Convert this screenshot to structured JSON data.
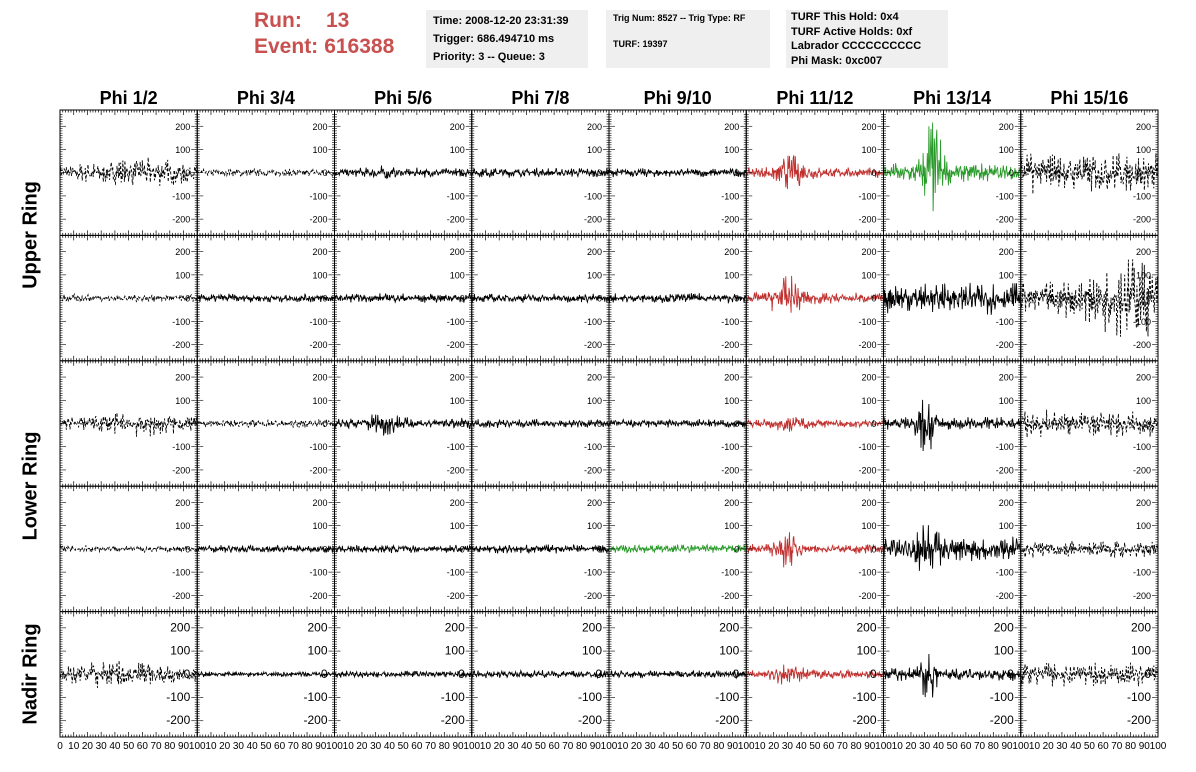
{
  "header": {
    "run_label": "Run:",
    "run_value": "13",
    "event_label": "Event:",
    "event_value": "616388",
    "time_line": "Time: 2008-12-20 23:31:39",
    "trigger_line": "Trigger: 686.494710 ms",
    "priority_line": "Priority: 3 -- Queue: 3",
    "trig_line": "Trig Num: 8527 -- Trig Type: RF",
    "turf_line": "TURF: 19397",
    "turf_hold_line": "TURF This Hold: 0x4",
    "turf_active_line": "TURF Active Holds: 0xf",
    "labrador_line": "Labrador CCCCCCCCCC",
    "phi_mask_line": "Phi Mask: 0xc007",
    "accent_color": "#c8504e",
    "box_color": "#efefef"
  },
  "chart_data": {
    "type": "line",
    "columns": [
      "Phi 1/2",
      "Phi 3/4",
      "Phi 5/6",
      "Phi 7/8",
      "Phi 9/10",
      "Phi 11/12",
      "Phi 13/14",
      "Phi 15/16"
    ],
    "rows": [
      "Upper Ring",
      "Upper Ring",
      "Lower Ring",
      "Lower Ring",
      "Nadir Ring"
    ],
    "ring_labels": [
      {
        "text": "Upper Ring",
        "rows": [
          0,
          1
        ]
      },
      {
        "text": "Lower Ring",
        "rows": [
          2,
          3
        ]
      },
      {
        "text": "Nadir Ring",
        "rows": [
          4
        ]
      }
    ],
    "xlim": [
      0,
      100
    ],
    "ylim": [
      -270,
      270
    ],
    "x_ticks": [
      0,
      10,
      20,
      30,
      40,
      50,
      60,
      70,
      80,
      90,
      100
    ],
    "x_tick_labels": [
      "0",
      "10",
      "20",
      "30",
      "40",
      "50",
      "60",
      "70",
      "80",
      "90",
      "100"
    ],
    "y_ticks": [
      -200,
      -100,
      0,
      100,
      200
    ],
    "y_tick_labels": [
      "-200",
      "-100",
      "0",
      "100",
      "200"
    ],
    "colors": {
      "normal": "#000000",
      "red": "#c0302e",
      "green": "#2a9a2a"
    },
    "waveforms": [
      [
        {
          "color": "black",
          "dashed": true,
          "amp": 35,
          "bursts": [
            [
              60,
              25,
              1.0
            ]
          ]
        },
        {
          "color": "black",
          "dashed": true,
          "amp": 18,
          "bursts": []
        },
        {
          "color": "black",
          "dashed": false,
          "amp": 22,
          "bursts": [
            [
              35,
              5,
              1.0
            ]
          ]
        },
        {
          "color": "black",
          "dashed": false,
          "amp": 22,
          "bursts": []
        },
        {
          "color": "black",
          "dashed": false,
          "amp": 20,
          "bursts": []
        },
        {
          "color": "red",
          "dashed": false,
          "amp": 25,
          "bursts": [
            [
              32,
              8,
              2.5
            ]
          ]
        },
        {
          "color": "green",
          "dashed": false,
          "amp": 45,
          "bursts": [
            [
              36,
              5,
              5.5
            ]
          ]
        },
        {
          "color": "black",
          "dashed": true,
          "amp": 95,
          "bursts": []
        }
      ],
      [
        {
          "color": "black",
          "dashed": true,
          "amp": 18,
          "bursts": []
        },
        {
          "color": "black",
          "dashed": false,
          "amp": 20,
          "bursts": []
        },
        {
          "color": "black",
          "dashed": false,
          "amp": 22,
          "bursts": []
        },
        {
          "color": "black",
          "dashed": false,
          "amp": 20,
          "bursts": []
        },
        {
          "color": "black",
          "dashed": false,
          "amp": 22,
          "bursts": []
        },
        {
          "color": "red",
          "dashed": false,
          "amp": 25,
          "bursts": [
            [
              30,
              8,
              3.5
            ]
          ]
        },
        {
          "color": "black",
          "dashed": false,
          "amp": 75,
          "bursts": []
        },
        {
          "color": "black",
          "dashed": true,
          "amp": 80,
          "bursts": [
            [
              80,
              20,
              1.4
            ]
          ]
        }
      ],
      [
        {
          "color": "black",
          "dashed": true,
          "amp": 28,
          "bursts": [
            [
              62,
              25,
              1.2
            ]
          ]
        },
        {
          "color": "black",
          "dashed": true,
          "amp": 18,
          "bursts": []
        },
        {
          "color": "black",
          "dashed": false,
          "amp": 25,
          "bursts": [
            [
              36,
              8,
              1.5
            ]
          ]
        },
        {
          "color": "black",
          "dashed": false,
          "amp": 20,
          "bursts": []
        },
        {
          "color": "black",
          "dashed": false,
          "amp": 20,
          "bursts": []
        },
        {
          "color": "red",
          "dashed": false,
          "amp": 18,
          "bursts": [
            [
              33,
              10,
              1.2
            ]
          ]
        },
        {
          "color": "black",
          "dashed": false,
          "amp": 30,
          "bursts": [
            [
              31,
              4,
              6.0
            ]
          ]
        },
        {
          "color": "black",
          "dashed": true,
          "amp": 60,
          "bursts": []
        }
      ],
      [
        {
          "color": "black",
          "dashed": true,
          "amp": 16,
          "bursts": []
        },
        {
          "color": "black",
          "dashed": false,
          "amp": 18,
          "bursts": []
        },
        {
          "color": "black",
          "dashed": false,
          "amp": 18,
          "bursts": []
        },
        {
          "color": "black",
          "dashed": false,
          "amp": 20,
          "bursts": []
        },
        {
          "color": "green",
          "dashed": false,
          "amp": 20,
          "bursts": []
        },
        {
          "color": "red",
          "dashed": false,
          "amp": 22,
          "bursts": [
            [
              30,
              6,
              3.0
            ]
          ]
        },
        {
          "color": "black",
          "dashed": false,
          "amp": 55,
          "bursts": [
            [
              32,
              5,
              2.5
            ]
          ]
        },
        {
          "color": "black",
          "dashed": true,
          "amp": 40,
          "bursts": []
        }
      ],
      [
        {
          "color": "black",
          "dashed": true,
          "amp": 30,
          "bursts": [
            [
              45,
              25,
              1.3
            ]
          ]
        },
        {
          "color": "black",
          "dashed": false,
          "amp": 12,
          "bursts": []
        },
        {
          "color": "black",
          "dashed": false,
          "amp": 16,
          "bursts": []
        },
        {
          "color": "black",
          "dashed": false,
          "amp": 18,
          "bursts": []
        },
        {
          "color": "black",
          "dashed": false,
          "amp": 18,
          "bursts": []
        },
        {
          "color": "red",
          "dashed": false,
          "amp": 22,
          "bursts": [
            [
              30,
              8,
              1.5
            ]
          ]
        },
        {
          "color": "black",
          "dashed": false,
          "amp": 30,
          "bursts": [
            [
              33,
              4,
              3.5
            ]
          ]
        },
        {
          "color": "black",
          "dashed": true,
          "amp": 55,
          "bursts": []
        }
      ]
    ]
  }
}
